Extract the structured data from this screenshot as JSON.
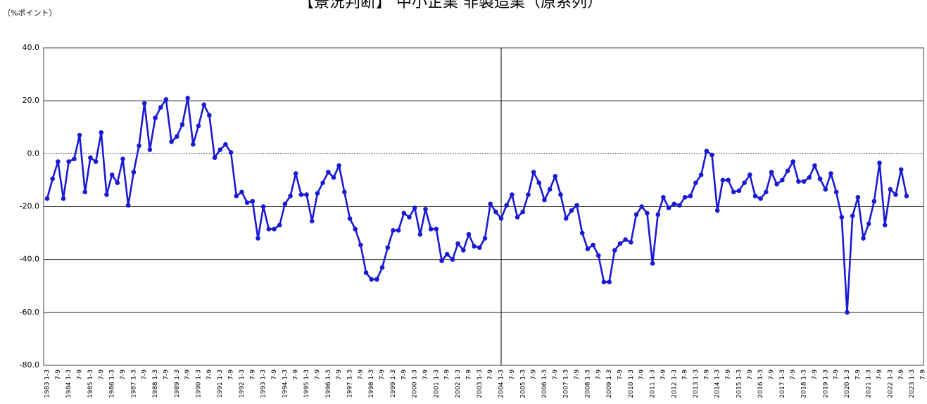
{
  "chart_data": {
    "type": "line",
    "title": "【景況判断】 中小企業 非製造業（原系列）",
    "y_label": "（%ポイント）",
    "ylim": [
      -80,
      40
    ],
    "yticks": [
      {
        "value": -80,
        "label": "-80.0"
      },
      {
        "value": -60,
        "label": "-60.0"
      },
      {
        "value": -40,
        "label": "-40.0"
      },
      {
        "value": -20,
        "label": "-20.0"
      },
      {
        "value": 0,
        "label": "0.0"
      },
      {
        "value": 20,
        "label": "20.0"
      },
      {
        "value": 40,
        "label": "40.0"
      }
    ],
    "grid": true,
    "categories": [
      "1983 1-3",
      null,
      "7-9",
      null,
      "1984 1-3",
      null,
      "7-9",
      null,
      "1985 1-3",
      null,
      "7-9",
      null,
      "1986 1-3",
      null,
      "7-9",
      null,
      "1987 1-3",
      null,
      "7-9",
      null,
      "1988 1-3",
      null,
      "7-9",
      null,
      "1989 1-3",
      null,
      "7-9",
      null,
      "1990 1-3",
      null,
      "7-9",
      null,
      "1991 1-3",
      null,
      "7-9",
      null,
      "1992 1-3",
      null,
      "7-9",
      null,
      "1993 1-3",
      null,
      "7-9",
      null,
      "1994 1-3",
      null,
      "7-9",
      null,
      "1995 1-3",
      null,
      "7-9",
      null,
      "1996 1-3",
      null,
      "7-9",
      null,
      "1997 1-3",
      null,
      "7-9",
      null,
      "1998 1-3",
      null,
      "7-9",
      null,
      "1999 1-3",
      null,
      "7-9",
      null,
      "2000 1-3",
      null,
      "7-9",
      null,
      "2001 1-3",
      null,
      "7-9",
      null,
      "2002 1-3",
      null,
      "7-9",
      null,
      "2003 1-3",
      null,
      "7-9",
      null,
      "2004 1-3",
      null,
      "7-9",
      null,
      "2005 1-3",
      null,
      "7-9",
      null,
      "2006 1-3",
      null,
      "7-9",
      null,
      "2007 1-3",
      null,
      "7-9",
      null,
      "2008 1-3",
      null,
      "7-9",
      null,
      "2009 1-3",
      null,
      "7-9",
      null,
      "2010 1-3",
      null,
      "7-9",
      null,
      "2011 1-3",
      null,
      "7-9",
      null,
      "2012 1-3",
      null,
      "7-9",
      null,
      "2013 1-3",
      null,
      "7-9",
      null,
      "2014 1-3",
      null,
      "7-9",
      null,
      "2015 1-3",
      null,
      "7-9",
      null,
      "2016 1-3",
      null,
      "7-9",
      null,
      "2017 1-3",
      null,
      "7-9",
      null,
      "2018 1-3",
      null,
      "7-9",
      null,
      "2019 1-3",
      null,
      "7-9",
      null,
      "2020 1-3",
      null,
      "7-9",
      null,
      "2021 1-3",
      null,
      "7-9",
      null,
      "2022 1-3",
      null,
      "7-9",
      null,
      "2023 1-3",
      null,
      "7-9"
    ],
    "series": [
      {
        "color": "#1a1ad6",
        "values": [
          -17,
          -9.5,
          -3,
          -17,
          -3,
          -2,
          7,
          -14.5,
          -1.5,
          -3,
          8,
          -15.5,
          -8,
          -11,
          -2,
          -19.5,
          -7,
          3,
          19,
          1.5,
          13.5,
          17.5,
          20.5,
          4.5,
          6.5,
          11,
          21,
          3.5,
          10.5,
          18.5,
          14.5,
          -1.5,
          1.5,
          3.5,
          0.5,
          -16,
          -14.5,
          -18.5,
          -18,
          -32,
          -20,
          -28.5,
          -28.5,
          -27,
          -19,
          -16,
          -7.5,
          -15.5,
          -15.5,
          -25.5,
          -15,
          -11,
          -7,
          -9,
          -4.5,
          -14.5,
          -24.5,
          -28.5,
          -34.5,
          -45,
          -47.5,
          -47.5,
          -43,
          -35.5,
          -29,
          -29,
          -22.5,
          -24,
          -20.5,
          -30.5,
          -21,
          -28.5,
          -28.5,
          -40.5,
          -38,
          -40,
          -34,
          -36.5,
          -30.5,
          -35,
          -35.5,
          -32,
          -19,
          -22,
          -24.5,
          -19.5,
          -15.5,
          -24,
          -22,
          -15.5,
          -7,
          -11,
          -17.5,
          -13.5,
          -8.5,
          -15.5,
          -24.5,
          -21.5,
          -19.5,
          -30,
          -36,
          -34.5,
          -38.5,
          -48.5,
          -48.5,
          -36.5,
          -34,
          -32.5,
          -33.5,
          -23,
          -20,
          -22.5,
          -41.5,
          -23,
          -16.5,
          -20.5,
          -19,
          -19.5,
          -16.5,
          -16,
          -11,
          -8,
          1,
          -0.5,
          -21.5,
          -10,
          -10,
          -14.5,
          -14,
          -11,
          -8,
          -16,
          -17,
          -14.5,
          -7,
          -11.5,
          -10,
          -6.5,
          -3,
          -10.5,
          -10.5,
          -9,
          -4.5,
          -9.5,
          -13.5,
          -7.5,
          -14.5,
          -24,
          -60,
          -23.5,
          -16.5,
          -32,
          -26.5,
          -18,
          -3.5,
          -27,
          -13.5,
          -15.5,
          -6,
          -16,
          null,
          null,
          null
        ]
      }
    ]
  }
}
